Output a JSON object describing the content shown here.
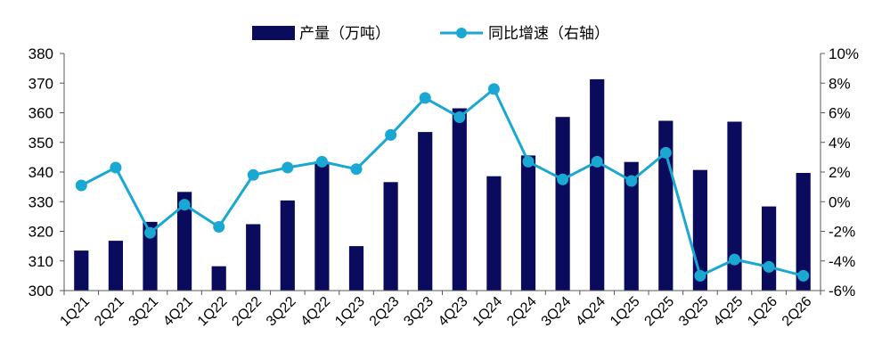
{
  "chart_data": {
    "type": "bar+line",
    "categories": [
      "1Q21",
      "2Q21",
      "3Q21",
      "4Q21",
      "1Q22",
      "2Q22",
      "3Q22",
      "4Q22",
      "1Q23",
      "2Q23",
      "3Q23",
      "4Q23",
      "1Q24",
      "2Q24",
      "3Q24",
      "4Q24",
      "1Q25",
      "2Q25",
      "3Q25",
      "4Q25",
      "1Q26",
      "2Q26"
    ],
    "series": [
      {
        "name": "产量（万吨）",
        "type": "bar",
        "axis": "left",
        "color": "#0b0b5e",
        "values": [
          313.5,
          316.8,
          323.2,
          333.3,
          308.2,
          322.4,
          330.4,
          343.5,
          315.0,
          336.6,
          353.5,
          361.5,
          338.6,
          345.6,
          358.6,
          371.3,
          343.4,
          357.3,
          340.7,
          357.0,
          328.4,
          339.7
        ]
      },
      {
        "name": "同比增速（右轴）",
        "type": "line",
        "axis": "right",
        "color": "#1aa7d2",
        "values": [
          1.1,
          2.3,
          -2.1,
          -0.2,
          -1.7,
          1.8,
          2.3,
          2.7,
          2.2,
          4.5,
          7.0,
          5.7,
          7.6,
          2.7,
          1.5,
          2.7,
          1.4,
          3.3,
          -5.0,
          -3.9,
          -4.4,
          -5.0
        ]
      }
    ],
    "y_left": {
      "ylim": [
        300,
        380
      ],
      "ticks": [
        "300",
        "310",
        "320",
        "330",
        "340",
        "350",
        "360",
        "370",
        "380"
      ]
    },
    "y_right": {
      "ylim": [
        -6,
        10
      ],
      "ticks": [
        "-6%",
        "-4%",
        "-2%",
        "0%",
        "2%",
        "4%",
        "6%",
        "8%",
        "10%"
      ]
    },
    "legend": "top-center",
    "grid": false
  }
}
